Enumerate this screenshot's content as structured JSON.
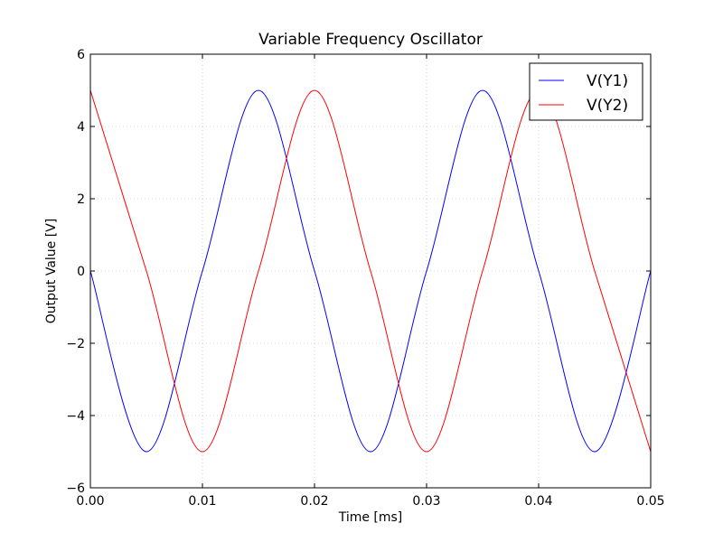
{
  "chart_data": {
    "type": "line",
    "title": "Variable Frequency Oscillator",
    "xlabel": "Time [ms]",
    "ylabel": "Output Value [V]",
    "xlim": [
      0,
      0.05
    ],
    "ylim": [
      -6,
      6
    ],
    "x_ticks": [
      0.0,
      0.01,
      0.02,
      0.03,
      0.04,
      0.05
    ],
    "x_tick_labels": [
      "0.00",
      "0.01",
      "0.02",
      "0.03",
      "0.04",
      "0.05"
    ],
    "y_ticks": [
      -6,
      -4,
      -2,
      0,
      2,
      4,
      6
    ],
    "y_tick_labels": [
      "−6",
      "−4",
      "−2",
      "0",
      "2",
      "4",
      "6"
    ],
    "grid": true,
    "legend_position": "top-right",
    "series": [
      {
        "name": "V(Y1)",
        "color": "#0000ff",
        "x": [
          0.0,
          0.005,
          0.01,
          0.015,
          0.02,
          0.025,
          0.03,
          0.035,
          0.04,
          0.045,
          0.05
        ],
        "y": [
          0,
          -5,
          0,
          5,
          0,
          -5,
          0,
          5,
          0,
          -5,
          0
        ]
      },
      {
        "name": "V(Y2)",
        "color": "#ff0000",
        "x": [
          0.0,
          0.005,
          0.01,
          0.015,
          0.02,
          0.025,
          0.03,
          0.035,
          0.04,
          0.045,
          0.05
        ],
        "y": [
          5,
          0,
          -5,
          0,
          5,
          0,
          -5,
          0,
          5,
          0,
          -5
        ]
      }
    ]
  }
}
